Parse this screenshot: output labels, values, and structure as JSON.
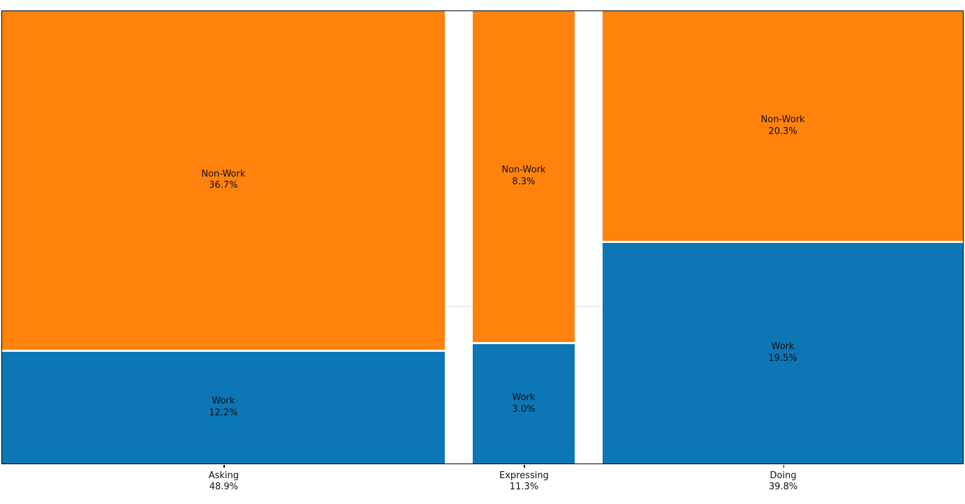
{
  "chart_data": {
    "type": "mosaic",
    "title": "",
    "xlabel": "",
    "ylabel": "",
    "legend": "none (labels drawn inside tiles)",
    "x_categories": [
      {
        "label": "Asking",
        "total_pct": 48.9,
        "segments": [
          {
            "label": "Work",
            "pct": 12.2
          },
          {
            "label": "Non-Work",
            "pct": 36.7
          }
        ]
      },
      {
        "label": "Expressing",
        "total_pct": 11.3,
        "segments": [
          {
            "label": "Work",
            "pct": 3.0
          },
          {
            "label": "Non-Work",
            "pct": 8.3
          }
        ]
      },
      {
        "label": "Doing",
        "total_pct": 39.8,
        "segments": [
          {
            "label": "Work",
            "pct": 19.5
          },
          {
            "label": "Non-Work",
            "pct": 20.3
          }
        ]
      }
    ],
    "segment_colors": {
      "Work": "#0d76b5",
      "Non-Work": "#ff820d"
    },
    "axis_color": "#000000",
    "tile_label_color": "#111111",
    "gap_line_color": "#e0e0e0",
    "work_axis_orientation": "vertical, Work on bottom, Non-Work on top",
    "value_format": "label newline pct%"
  }
}
